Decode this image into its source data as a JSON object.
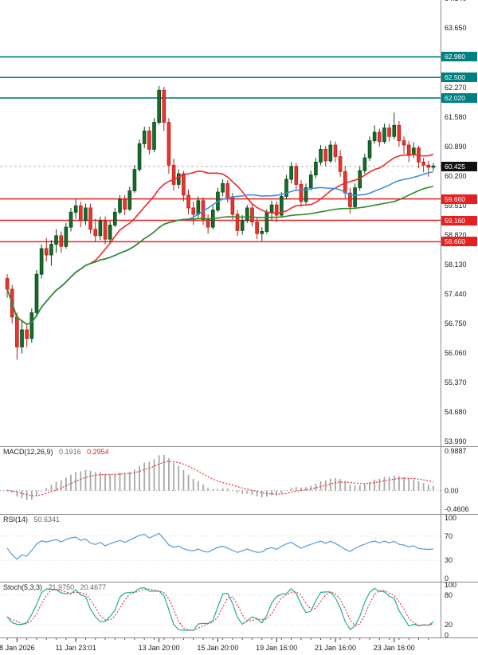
{
  "colors": {
    "background": "#ffffff",
    "up_candle": "#156d2a",
    "up_border": "#0b4418",
    "down_candle": "#e8352e",
    "down_border": "#b3201a",
    "ma_fast": "#ef2929",
    "ma_mid": "#3f8fde",
    "ma_slow": "#2d8a2d",
    "resistance": "#008080",
    "support": "#e32222",
    "current": "#111111",
    "bid_line": "#b5b5b5",
    "macd_hist": "#a8a8a8",
    "macd_signal": "#e03131",
    "rsi_line": "#5599dd",
    "stoch_k": "#1fae9b",
    "stoch_d": "#e03131",
    "guide": "#d0d0d0",
    "separator": "#8a8a8a",
    "axis_text": "#1a1a1a"
  },
  "chart_data": {
    "type": "candlestick",
    "price_pane": {
      "y_axis": {
        "top_price": 64.31,
        "bottom_price": 53.88,
        "plain_labels": [
          64.34,
          63.65,
          62.27,
          61.58,
          60.89,
          60.2,
          59.51,
          58.82,
          58.13,
          57.44,
          56.75,
          56.06,
          55.37,
          54.68,
          53.99
        ]
      },
      "levels": {
        "resistance": [
          62.98,
          62.5,
          62.02
        ],
        "support": [
          59.66,
          59.16,
          58.66
        ],
        "current_price": 60.425
      },
      "moving_averages": [
        {
          "name": "ma-fast",
          "period": 18,
          "color_key": "ma_fast"
        },
        {
          "name": "ma-mid",
          "period": 38,
          "color_key": "ma_mid"
        },
        {
          "name": "ma-slow",
          "period": 80,
          "color_key": "ma_slow"
        }
      ],
      "candles": [
        [
          57.8,
          57.9,
          57.35,
          57.55
        ],
        [
          57.55,
          57.65,
          56.75,
          56.9
        ],
        [
          56.9,
          57.0,
          55.9,
          56.2
        ],
        [
          56.2,
          56.8,
          56.05,
          56.6
        ],
        [
          56.6,
          56.75,
          56.2,
          56.4
        ],
        [
          56.4,
          57.1,
          56.3,
          57.0
        ],
        [
          57.0,
          58.0,
          56.9,
          57.9
        ],
        [
          57.9,
          58.6,
          57.8,
          58.5
        ],
        [
          58.5,
          58.75,
          58.2,
          58.35
        ],
        [
          58.35,
          58.7,
          58.1,
          58.6
        ],
        [
          58.6,
          58.95,
          58.4,
          58.8
        ],
        [
          58.8,
          58.9,
          58.4,
          58.55
        ],
        [
          58.55,
          59.1,
          58.5,
          59.0
        ],
        [
          59.0,
          59.45,
          58.9,
          59.35
        ],
        [
          59.35,
          59.65,
          59.2,
          59.5
        ],
        [
          59.5,
          59.6,
          59.0,
          59.15
        ],
        [
          59.15,
          59.55,
          59.05,
          59.45
        ],
        [
          59.45,
          59.55,
          58.85,
          58.95
        ],
        [
          58.95,
          59.2,
          58.65,
          58.8
        ],
        [
          58.8,
          59.25,
          58.7,
          59.15
        ],
        [
          59.15,
          59.25,
          58.6,
          58.72
        ],
        [
          58.72,
          59.15,
          58.62,
          59.05
        ],
        [
          59.05,
          59.45,
          59.0,
          59.35
        ],
        [
          59.35,
          59.75,
          59.3,
          59.65
        ],
        [
          59.65,
          59.75,
          59.28,
          59.42
        ],
        [
          59.42,
          59.95,
          59.38,
          59.85
        ],
        [
          59.85,
          60.45,
          59.8,
          60.35
        ],
        [
          60.35,
          61.05,
          60.3,
          60.95
        ],
        [
          60.95,
          61.35,
          60.85,
          61.25
        ],
        [
          61.25,
          61.35,
          60.7,
          60.82
        ],
        [
          60.82,
          61.55,
          60.75,
          61.45
        ],
        [
          61.45,
          62.3,
          61.4,
          62.2
        ],
        [
          62.2,
          62.28,
          61.25,
          61.45
        ],
        [
          61.45,
          61.55,
          60.25,
          60.45
        ],
        [
          60.45,
          60.6,
          59.85,
          60.0
        ],
        [
          60.0,
          60.35,
          59.9,
          60.25
        ],
        [
          60.25,
          60.32,
          59.6,
          59.75
        ],
        [
          59.75,
          59.88,
          59.3,
          59.45
        ],
        [
          59.45,
          59.6,
          59.05,
          59.3
        ],
        [
          59.3,
          59.72,
          59.22,
          59.62
        ],
        [
          59.62,
          59.7,
          59.05,
          59.18
        ],
        [
          59.18,
          59.3,
          58.85,
          59.0
        ],
        [
          59.0,
          59.5,
          58.95,
          59.4
        ],
        [
          59.4,
          59.92,
          59.35,
          59.82
        ],
        [
          59.82,
          60.12,
          59.72,
          60.02
        ],
        [
          60.02,
          60.1,
          59.58,
          59.7
        ],
        [
          59.7,
          59.8,
          59.18,
          59.3
        ],
        [
          59.3,
          59.4,
          58.8,
          58.92
        ],
        [
          58.92,
          59.28,
          58.82,
          59.15
        ],
        [
          59.15,
          59.52,
          59.1,
          59.45
        ],
        [
          59.45,
          59.55,
          59.02,
          59.12
        ],
        [
          59.12,
          59.22,
          58.72,
          58.85
        ],
        [
          58.85,
          59.0,
          58.68,
          58.9
        ],
        [
          58.9,
          59.42,
          58.85,
          59.35
        ],
        [
          59.35,
          59.62,
          59.15,
          59.52
        ],
        [
          59.52,
          59.6,
          59.12,
          59.28
        ],
        [
          59.28,
          59.82,
          59.22,
          59.72
        ],
        [
          59.72,
          60.22,
          59.65,
          60.12
        ],
        [
          60.12,
          60.52,
          60.02,
          60.42
        ],
        [
          60.42,
          60.5,
          59.88,
          60.0
        ],
        [
          60.0,
          60.1,
          59.48,
          59.6
        ],
        [
          59.6,
          60.02,
          59.52,
          59.92
        ],
        [
          59.92,
          60.32,
          59.85,
          60.22
        ],
        [
          60.22,
          60.62,
          60.15,
          60.52
        ],
        [
          60.52,
          60.92,
          60.45,
          60.82
        ],
        [
          60.82,
          60.9,
          60.42,
          60.55
        ],
        [
          60.55,
          61.02,
          60.5,
          60.92
        ],
        [
          60.92,
          61.0,
          60.52,
          60.65
        ],
        [
          60.65,
          60.8,
          60.18,
          60.3
        ],
        [
          60.3,
          60.42,
          59.68,
          59.8
        ],
        [
          59.8,
          59.92,
          59.32,
          59.48
        ],
        [
          59.48,
          60.02,
          59.42,
          59.92
        ],
        [
          59.92,
          60.42,
          59.85,
          60.32
        ],
        [
          60.32,
          60.72,
          60.25,
          60.62
        ],
        [
          60.62,
          61.12,
          60.55,
          61.02
        ],
        [
          61.02,
          61.38,
          60.95,
          61.22
        ],
        [
          61.22,
          61.3,
          60.88,
          61.0
        ],
        [
          61.0,
          61.42,
          60.95,
          61.32
        ],
        [
          61.32,
          61.42,
          61.0,
          61.12
        ],
        [
          61.12,
          61.68,
          61.05,
          61.38
        ],
        [
          61.38,
          61.48,
          60.88,
          61.02
        ],
        [
          61.02,
          61.12,
          60.72,
          60.92
        ],
        [
          60.92,
          61.02,
          60.52,
          60.7
        ],
        [
          60.7,
          60.98,
          60.62,
          60.85
        ],
        [
          60.85,
          60.9,
          60.38,
          60.52
        ],
        [
          60.52,
          60.62,
          60.28,
          60.45
        ],
        [
          60.45,
          60.55,
          60.18,
          60.4
        ],
        [
          60.4,
          60.5,
          60.32,
          60.43
        ]
      ]
    },
    "macd": {
      "label": "MACD(12,26,9)",
      "value_main": "0.1916",
      "value_signal": "0.2954",
      "params": [
        12,
        26,
        9
      ],
      "range": [
        1.08,
        -0.58
      ],
      "axis_labels": [
        {
          "text": "0.9887",
          "value": 0.9887
        },
        {
          "text": "0.00",
          "value": 0.0
        },
        {
          "text": "-0.4606",
          "value": -0.4606
        }
      ]
    },
    "rsi": {
      "label": "RSI(14)",
      "value": "50.6341",
      "params": [
        14
      ],
      "guides": [
        70,
        30
      ],
      "axis_labels": [
        {
          "text": "100",
          "value": 100
        },
        {
          "text": "70",
          "value": 70
        },
        {
          "text": "30",
          "value": 30
        },
        {
          "text": "0",
          "value": 0
        }
      ]
    },
    "stoch": {
      "label": "Stoch(5,3,3)",
      "value_k": "21.9750",
      "value_d": "20.4677",
      "params": [
        5,
        3,
        3
      ],
      "guides": [
        80,
        20
      ],
      "axis_labels": [
        {
          "text": "100",
          "value": 100
        },
        {
          "text": "80",
          "value": 80
        },
        {
          "text": "20",
          "value": 20
        },
        {
          "text": "0",
          "value": 0
        }
      ]
    },
    "time_axis": {
      "labels": [
        {
          "text": "8 Jan 2026",
          "index": 2
        },
        {
          "text": "11 Jan 23:01",
          "index": 14
        },
        {
          "text": "13 Jan 20:00",
          "index": 31
        },
        {
          "text": "15 Jan 20:00",
          "index": 43
        },
        {
          "text": "19 Jan 16:00",
          "index": 55
        },
        {
          "text": "21 Jan 16:00",
          "index": 67
        },
        {
          "text": "23 Jan 16:00",
          "index": 79
        }
      ]
    }
  }
}
